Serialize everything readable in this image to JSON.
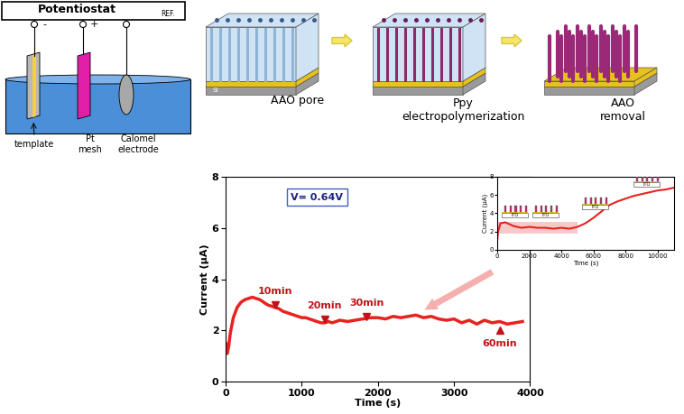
{
  "diagram": {
    "potentiostat": {
      "title": "Potentiostat",
      "ref": "REF.",
      "terminals": [
        "-",
        "+"
      ],
      "labels": [
        "template",
        "Pt\nmesh",
        "Calomel\nelectrode"
      ]
    },
    "process": {
      "steps": [
        "AAO pore",
        "Ppy\nelectropolymerization",
        "AAO\nremoval"
      ],
      "substrate": "Si"
    }
  },
  "chart_data": [
    {
      "type": "line",
      "x": [
        0,
        10,
        20,
        40,
        60,
        100,
        150,
        200,
        250,
        300,
        350,
        400,
        450,
        500,
        550,
        600,
        650,
        700,
        750,
        800,
        850,
        900,
        950,
        1000,
        1050,
        1100,
        1150,
        1200,
        1250,
        1300,
        1350,
        1400,
        1450,
        1500,
        1600,
        1700,
        1800,
        1900,
        2000,
        2100,
        2200,
        2300,
        2400,
        2500,
        2600,
        2700,
        2800,
        2900,
        3000,
        3100,
        3200,
        3300,
        3400,
        3500,
        3600,
        3700,
        3800,
        3900
      ],
      "values": [
        1.5,
        1.2,
        1.1,
        1.4,
        1.9,
        2.5,
        2.9,
        3.1,
        3.2,
        3.25,
        3.3,
        3.25,
        3.2,
        3.1,
        3.0,
        2.95,
        2.9,
        2.85,
        2.75,
        2.7,
        2.65,
        2.6,
        2.55,
        2.5,
        2.5,
        2.45,
        2.4,
        2.35,
        2.3,
        2.3,
        2.35,
        2.3,
        2.35,
        2.4,
        2.35,
        2.4,
        2.45,
        2.5,
        2.5,
        2.45,
        2.55,
        2.5,
        2.55,
        2.6,
        2.5,
        2.55,
        2.45,
        2.4,
        2.45,
        2.3,
        2.4,
        2.25,
        2.4,
        2.3,
        2.35,
        2.25,
        2.3,
        2.35
      ],
      "color": "#e8231f",
      "xlim": [
        0,
        4000
      ],
      "xticks": [
        0,
        1000,
        2000,
        3000,
        4000
      ],
      "ylim": [
        0,
        8
      ],
      "yticks": [
        0,
        2,
        4,
        6,
        8
      ],
      "x_label": "Time (s)",
      "y_label": "Current (μA)",
      "annotations": [
        {
          "text": "10min",
          "x": 650,
          "y": 3.0,
          "marker": "v"
        },
        {
          "text": "20min",
          "x": 1300,
          "y": 2.45,
          "marker": "v"
        },
        {
          "text": "30min",
          "x": 1850,
          "y": 2.55,
          "marker": "v"
        },
        {
          "text": "60min",
          "x": 3600,
          "y": 2.0,
          "marker": "^"
        }
      ],
      "boxed_text": {
        "text": "V= 0.64V",
        "x": 1200,
        "y": 7.2
      }
    },
    {
      "type": "line",
      "x": [
        0,
        50,
        200,
        500,
        1000,
        1500,
        2000,
        2500,
        3000,
        3500,
        4000,
        4500,
        5000,
        5500,
        6000,
        6500,
        7000,
        7500,
        8000,
        8500,
        9000,
        9500,
        10000,
        10500,
        11000
      ],
      "values": [
        1.0,
        2.0,
        2.9,
        3.0,
        2.6,
        2.4,
        2.5,
        2.4,
        2.4,
        2.3,
        2.4,
        2.3,
        2.5,
        2.9,
        3.5,
        4.2,
        4.9,
        5.3,
        5.6,
        5.9,
        6.1,
        6.3,
        6.5,
        6.6,
        6.8
      ],
      "color": "#e8231f",
      "xlim": [
        0,
        11000
      ],
      "xticks": [
        0,
        2000,
        4000,
        6000,
        8000,
        10000
      ],
      "ylim": [
        0,
        8
      ],
      "yticks": [
        0,
        2,
        4,
        6,
        8
      ],
      "x_label": "Time (s)",
      "y_label": "Current (μA)",
      "highlight": {
        "x": [
          0,
          5000
        ],
        "y": [
          1.8,
          3.0
        ]
      },
      "icon_labels": [
        "ITO",
        "ITO",
        "ITO",
        "ITO"
      ]
    }
  ]
}
